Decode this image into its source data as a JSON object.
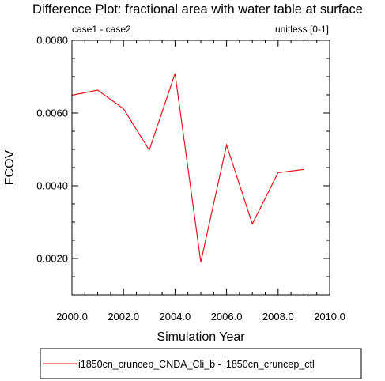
{
  "chart_data": {
    "type": "line",
    "title": "Difference Plot: fractional area with water table at surface",
    "subtitle_left": "case1 - case2",
    "subtitle_right": "unitless [0-1]",
    "xlabel": "Simulation Year",
    "ylabel": "FCOV",
    "xlim": [
      2000.0,
      2010.0
    ],
    "ylim": [
      0.001,
      0.008
    ],
    "x_ticks": [
      "2000.0",
      "2002.0",
      "2004.0",
      "2006.0",
      "2008.0",
      "2010.0"
    ],
    "x_tick_values": [
      2000,
      2002,
      2004,
      2006,
      2008,
      2010
    ],
    "y_ticks": [
      "0.0020",
      "0.0040",
      "0.0060",
      "0.0080"
    ],
    "y_tick_values": [
      0.002,
      0.004,
      0.006,
      0.008
    ],
    "grid": false,
    "legend_position": "bottom",
    "series": [
      {
        "name": "i1850cn_cruncep_CNDA_Cli_b - i1850cn_cruncep_ctl",
        "color": "#e8141b",
        "x": [
          2000,
          2001,
          2002,
          2003,
          2004,
          2005,
          2006,
          2007,
          2008,
          2009
        ],
        "y": [
          0.00649,
          0.00663,
          0.00612,
          0.00498,
          0.00709,
          0.0019,
          0.00512,
          0.00295,
          0.00436,
          0.00445
        ]
      }
    ]
  }
}
